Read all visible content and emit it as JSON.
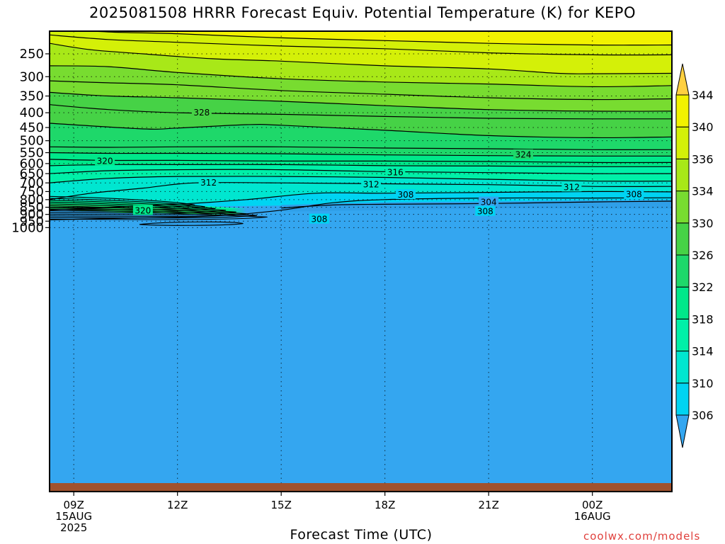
{
  "title": "2025081508 HRRR Forecast Equiv. Potential Temperature (K) for KEPO",
  "xlabel": "Forecast Time (UTC)",
  "credit": "coolwx.com/models",
  "chart_data": {
    "type": "heatmap",
    "title": "2025081508 HRRR Forecast Equiv. Potential Temperature (K) for KEPO",
    "xlabel": "Forecast Time (UTC)",
    "ylabel": "",
    "x_range_hours": [
      8.3,
      26.3
    ],
    "y_range_hpa": [
      1000,
      200
    ],
    "y_scale": "log",
    "grid": true,
    "x_ticks": [
      {
        "hour": 9,
        "lines": [
          "09Z",
          "15AUG",
          "2025"
        ]
      },
      {
        "hour": 12,
        "lines": [
          "12Z"
        ]
      },
      {
        "hour": 15,
        "lines": [
          "15Z"
        ]
      },
      {
        "hour": 18,
        "lines": [
          "18Z"
        ]
      },
      {
        "hour": 21,
        "lines": [
          "21Z"
        ]
      },
      {
        "hour": 24,
        "lines": [
          "00Z",
          "16AUG"
        ]
      }
    ],
    "y_ticks": [
      250,
      300,
      350,
      400,
      450,
      500,
      550,
      600,
      650,
      700,
      750,
      800,
      850,
      900,
      950,
      1000
    ],
    "colorbar": {
      "levels": [
        306,
        310,
        314,
        318,
        322,
        326,
        330,
        334,
        336,
        340,
        344
      ],
      "labels": [
        "306",
        "310",
        "314",
        "318",
        "322",
        "326",
        "330",
        "334",
        "336",
        "340",
        "344"
      ],
      "colors": [
        "#34a6f0",
        "#00d4f2",
        "#00e6d0",
        "#00f0a8",
        "#00e88a",
        "#1ed86a",
        "#46d246",
        "#78dc30",
        "#a8e818",
        "#d4f008",
        "#f2f200",
        "#ffd040"
      ]
    },
    "contour_labels": [
      {
        "value": 328,
        "hour": 12.7,
        "p": 400
      },
      {
        "value": 320,
        "hour": 9.9,
        "p": 588
      },
      {
        "value": 324,
        "hour": 22.0,
        "p": 560
      },
      {
        "value": 316,
        "hour": 18.3,
        "p": 645
      },
      {
        "value": 312,
        "hour": 12.9,
        "p": 700
      },
      {
        "value": 312,
        "hour": 17.6,
        "p": 710
      },
      {
        "value": 312,
        "hour": 23.4,
        "p": 725
      },
      {
        "value": 308,
        "hour": 18.6,
        "p": 770
      },
      {
        "value": 308,
        "hour": 25.2,
        "p": 767
      },
      {
        "value": 304,
        "hour": 21.0,
        "p": 817
      },
      {
        "value": 308,
        "hour": 20.9,
        "p": 880
      },
      {
        "value": 308,
        "hour": 16.1,
        "p": 936
      },
      {
        "value": 320,
        "hour": 11.0,
        "p": 873
      }
    ],
    "series": [
      {
        "level": 306,
        "points": [
          [
            15.0,
            855
          ],
          [
            16.5,
            835
          ],
          [
            18,
            830
          ],
          [
            21,
            825
          ],
          [
            24,
            815
          ],
          [
            26.3,
            810
          ]
        ]
      },
      {
        "level": 308,
        "points": [
          [
            8.3,
            940
          ],
          [
            10,
            930
          ],
          [
            12,
            920
          ],
          [
            13.5,
            905
          ],
          [
            15,
            870
          ],
          [
            16.5,
            820
          ],
          [
            18,
            800
          ],
          [
            21,
            790
          ],
          [
            24,
            790
          ],
          [
            26.3,
            788
          ]
        ]
      },
      {
        "level": 310,
        "points": [
          [
            8.3,
            870
          ],
          [
            10,
            850
          ],
          [
            12,
            830
          ],
          [
            14,
            800
          ],
          [
            16,
            760
          ],
          [
            18,
            760
          ],
          [
            21,
            755
          ],
          [
            24,
            750
          ],
          [
            26.3,
            752
          ]
        ]
      },
      {
        "level": 312,
        "points": [
          [
            8.3,
            800
          ],
          [
            9.5,
            760
          ],
          [
            11,
            730
          ],
          [
            12.5,
            700
          ],
          [
            15,
            700
          ],
          [
            18,
            705
          ],
          [
            21,
            710
          ],
          [
            24,
            720
          ],
          [
            26.3,
            720
          ]
        ]
      },
      {
        "level": 314,
        "points": [
          [
            8.3,
            700
          ],
          [
            10,
            675
          ],
          [
            12,
            665
          ],
          [
            15,
            665
          ],
          [
            18,
            670
          ],
          [
            21,
            680
          ],
          [
            24,
            690
          ],
          [
            26.3,
            690
          ]
        ]
      },
      {
        "level": 316,
        "points": [
          [
            8.3,
            650
          ],
          [
            10,
            635
          ],
          [
            12,
            630
          ],
          [
            15,
            630
          ],
          [
            18,
            640
          ],
          [
            21,
            645
          ],
          [
            24,
            650
          ],
          [
            26.3,
            650
          ]
        ]
      },
      {
        "level": 318,
        "points": [
          [
            8.3,
            610
          ],
          [
            10,
            605
          ],
          [
            12,
            605
          ],
          [
            15,
            605
          ],
          [
            18,
            610
          ],
          [
            21,
            612
          ],
          [
            24,
            615
          ],
          [
            26.3,
            615
          ]
        ]
      },
      {
        "level": 320,
        "points": [
          [
            8.3,
            580
          ],
          [
            10,
            585
          ],
          [
            12,
            585
          ],
          [
            15,
            588
          ],
          [
            18,
            588
          ],
          [
            21,
            590
          ],
          [
            24,
            595
          ],
          [
            26.3,
            595
          ]
        ]
      },
      {
        "level": 322,
        "points": [
          [
            8.3,
            550
          ],
          [
            10,
            553
          ],
          [
            12,
            553
          ],
          [
            15,
            555
          ],
          [
            18,
            560
          ],
          [
            21,
            563
          ],
          [
            24,
            565
          ],
          [
            26.3,
            565
          ]
        ]
      },
      {
        "level": 324,
        "points": [
          [
            8.3,
            525
          ],
          [
            10,
            527
          ],
          [
            12,
            525
          ],
          [
            15,
            525
          ],
          [
            18,
            530
          ],
          [
            21,
            533
          ],
          [
            24,
            537
          ],
          [
            26.3,
            537
          ]
        ]
      },
      {
        "level": 326,
        "points": [
          [
            8.3,
            435
          ],
          [
            11,
            455
          ],
          [
            12,
            452
          ],
          [
            14,
            440
          ],
          [
            15,
            442
          ],
          [
            18,
            460
          ],
          [
            21,
            480
          ],
          [
            24,
            488
          ],
          [
            26.3,
            485
          ]
        ]
      },
      {
        "level": 328,
        "points": [
          [
            8.3,
            375
          ],
          [
            10,
            390
          ],
          [
            12,
            400
          ],
          [
            15,
            405
          ],
          [
            18,
            412
          ],
          [
            21,
            418
          ],
          [
            24,
            420
          ],
          [
            26.3,
            420
          ]
        ]
      },
      {
        "level": 330,
        "points": [
          [
            8.3,
            340
          ],
          [
            10,
            350
          ],
          [
            12,
            355
          ],
          [
            15,
            365
          ],
          [
            18,
            378
          ],
          [
            21,
            390
          ],
          [
            24,
            395
          ],
          [
            26.3,
            395
          ]
        ]
      },
      {
        "level": 332,
        "points": [
          [
            8.3,
            310
          ],
          [
            10,
            315
          ],
          [
            12,
            320
          ],
          [
            15,
            335
          ],
          [
            18,
            345
          ],
          [
            21,
            355
          ],
          [
            24,
            360
          ],
          [
            26.3,
            358
          ]
        ]
      },
      {
        "level": 334,
        "points": [
          [
            8.3,
            275
          ],
          [
            10,
            277
          ],
          [
            12,
            290
          ],
          [
            15,
            305
          ],
          [
            18,
            313
          ],
          [
            21,
            318
          ],
          [
            24,
            325
          ],
          [
            26.3,
            322
          ]
        ]
      },
      {
        "level": 336,
        "points": [
          [
            8.3,
            230
          ],
          [
            9.5,
            242
          ],
          [
            11,
            250
          ],
          [
            13,
            260
          ],
          [
            15,
            265
          ],
          [
            18,
            275
          ],
          [
            21,
            282
          ],
          [
            23,
            292
          ],
          [
            24,
            293
          ],
          [
            26.3,
            292
          ]
        ]
      },
      {
        "level": 338,
        "points": [
          [
            8.3,
            215
          ],
          [
            10,
            223
          ],
          [
            12,
            228
          ],
          [
            15,
            235
          ],
          [
            18,
            240
          ],
          [
            21,
            248
          ],
          [
            24,
            252
          ],
          [
            26.3,
            252
          ]
        ]
      },
      {
        "level": 340,
        "points": [
          [
            8.3,
            205
          ],
          [
            10,
            210
          ],
          [
            12,
            213
          ],
          [
            15,
            220
          ],
          [
            18,
            225
          ],
          [
            21,
            230
          ],
          [
            24,
            233
          ],
          [
            26.3,
            233
          ]
        ]
      }
    ]
  }
}
